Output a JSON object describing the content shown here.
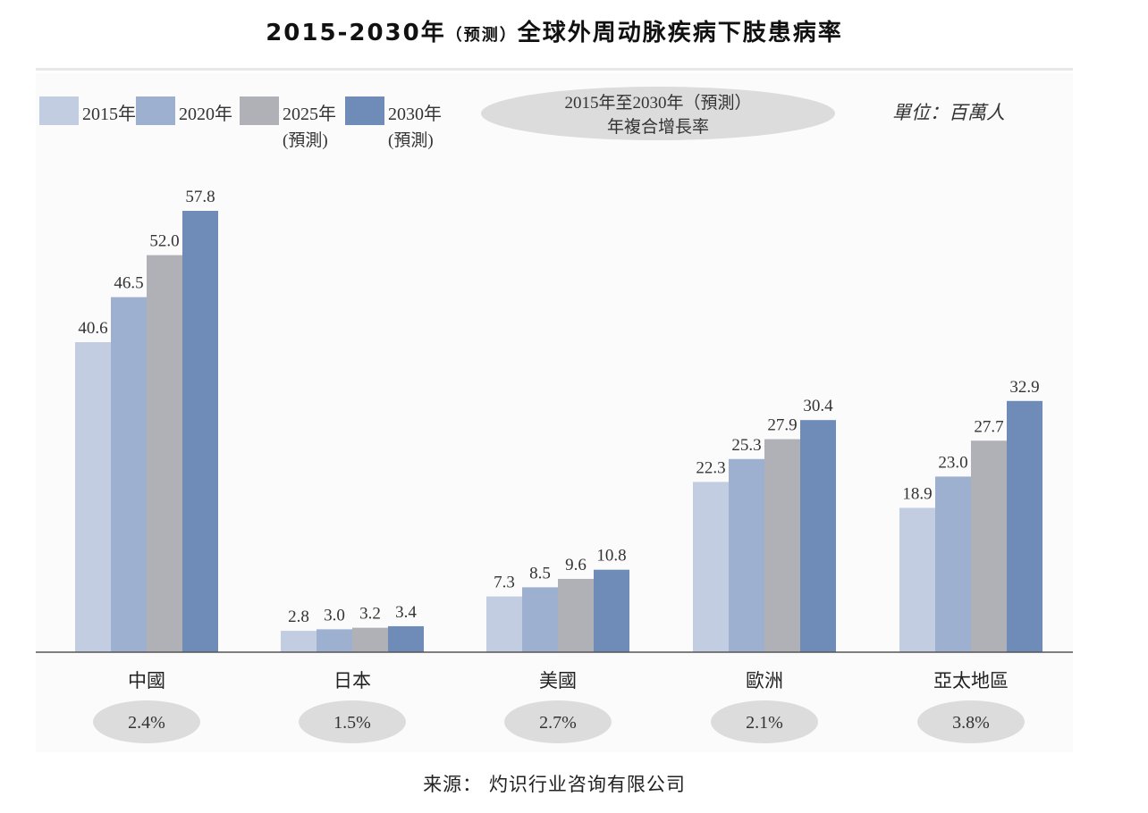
{
  "title": {
    "main_left": "2015-2030年",
    "paren": "（预测）",
    "main_right": "全球外周动脉疾病下肢患病率"
  },
  "source": "来源： 灼识行业咨询有限公司",
  "chart_data": {
    "type": "bar",
    "categories": [
      "中國",
      "日本",
      "美國",
      "歐洲",
      "亞太地區"
    ],
    "series": [
      {
        "name": "2015年",
        "name_line2": "",
        "color": "#c3cde2",
        "values": [
          40.6,
          2.8,
          7.3,
          22.3,
          18.9
        ]
      },
      {
        "name": "2020年",
        "name_line2": "",
        "color": "#9eb0d0",
        "values": [
          46.5,
          3.0,
          8.5,
          25.3,
          23.0
        ]
      },
      {
        "name": "2025年",
        "name_line2": "(預測)",
        "color": "#b0b1b6",
        "values": [
          52.0,
          3.2,
          9.6,
          27.9,
          27.7
        ]
      },
      {
        "name": "2030年",
        "name_line2": "(預測)",
        "color": "#6f8bb8",
        "values": [
          57.8,
          3.4,
          10.8,
          30.4,
          32.9
        ]
      }
    ],
    "value_labels": [
      [
        "40.6",
        "46.5",
        "52.0",
        "57.8"
      ],
      [
        "2.8",
        "3.0",
        "3.2",
        "3.4"
      ],
      [
        "7.3",
        "8.5",
        "9.6",
        "10.8"
      ],
      [
        "22.3",
        "25.3",
        "27.9",
        "30.4"
      ],
      [
        "18.9",
        "23.0",
        "27.7",
        "32.9"
      ]
    ],
    "cagr_header": [
      "2015年至2030年（預測）",
      "年複合增長率"
    ],
    "cagr": [
      "2.4%",
      "1.5%",
      "2.7%",
      "2.1%",
      "3.8%"
    ],
    "unit": "單位：百萬人",
    "ylim": [
      0,
      60
    ],
    "legend_position": "top-left",
    "grid": false
  }
}
